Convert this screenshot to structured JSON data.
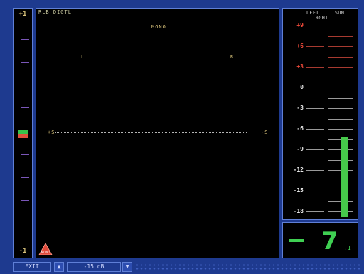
{
  "correlation": {
    "top_label": "+1",
    "bottom_label": "-1",
    "indicator_colors": [
      "#36c24a",
      "#e0503c"
    ]
  },
  "main": {
    "title": "RLB DIGTL",
    "mono_label": "MONO",
    "left_label": "L",
    "right_label": "R",
    "left_axis_label": "+S",
    "right_axis_label": "-S",
    "mono_badge": "MONO"
  },
  "meter": {
    "header_left": "LEFT",
    "header_sum": "SUM",
    "header_right": "RGHT",
    "scale": [
      {
        "label": "+9",
        "color": "red"
      },
      {
        "label": "+6",
        "color": "red"
      },
      {
        "label": "+3",
        "color": "red"
      },
      {
        "label": "0",
        "color": "white"
      },
      {
        "label": "-3",
        "color": "white"
      },
      {
        "label": "-6",
        "color": "white"
      },
      {
        "label": "-9",
        "color": "white"
      },
      {
        "label": "-12",
        "color": "white"
      },
      {
        "label": "-15",
        "color": "white"
      },
      {
        "label": "-18",
        "color": "white"
      }
    ],
    "bar_color": "#46c94a"
  },
  "readout": {
    "sign": "—",
    "value": "7",
    "decimal": ".1"
  },
  "bottom": {
    "exit_label": "EXIT",
    "up_label": "▲",
    "range_label": "-15 dB",
    "down_label": "▼"
  }
}
